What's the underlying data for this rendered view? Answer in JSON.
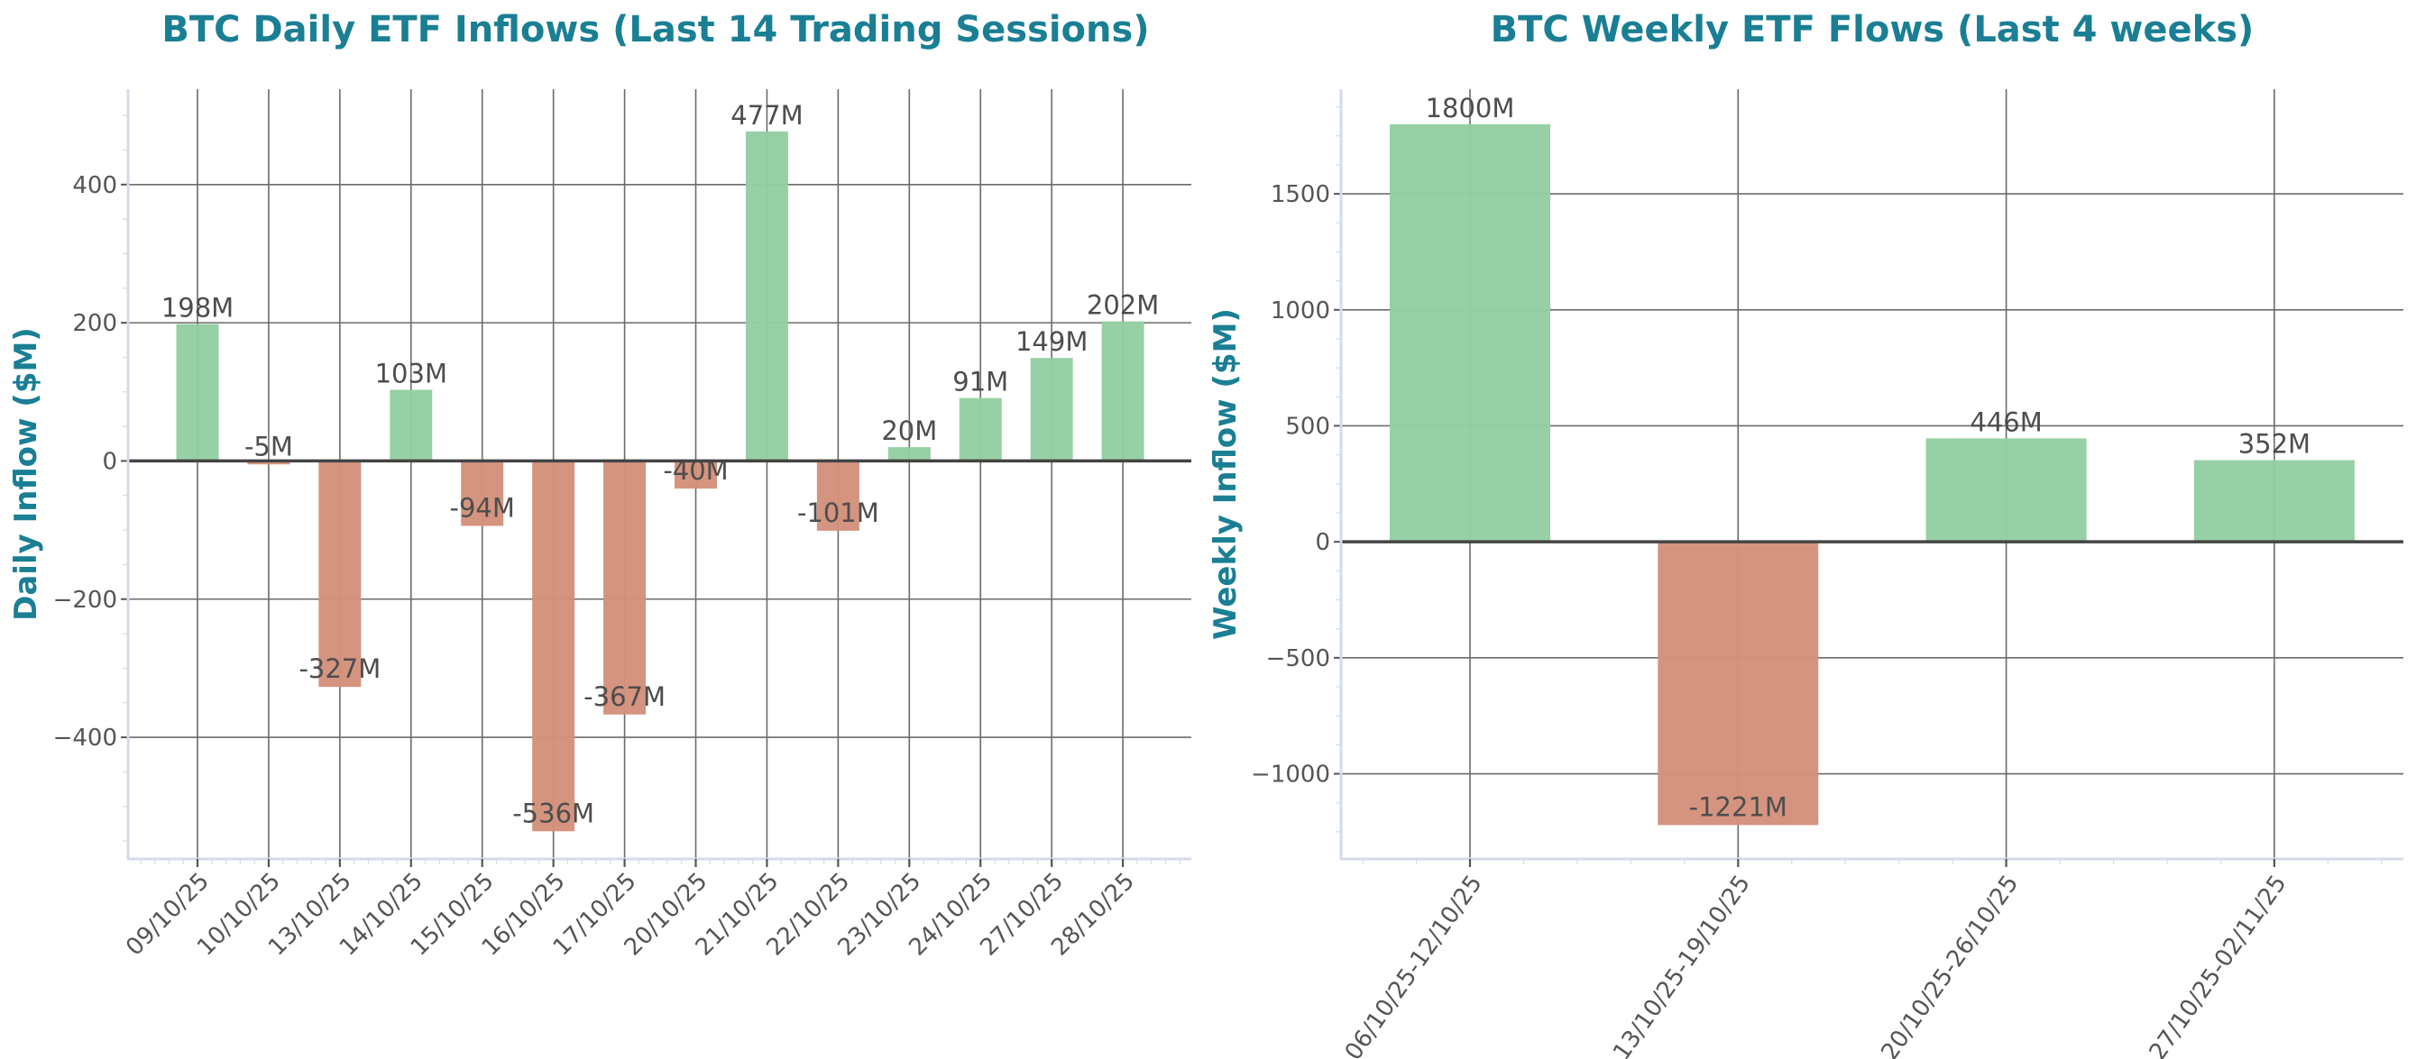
{
  "chart_data": [
    {
      "type": "bar",
      "title": "BTC Daily ETF Inflows (Last 14 Trading Sessions)",
      "xlabel": "",
      "ylabel": "Daily Inflow ($M)",
      "categories": [
        "09/10/25",
        "10/10/25",
        "13/10/25",
        "14/10/25",
        "15/10/25",
        "16/10/25",
        "17/10/25",
        "20/10/25",
        "21/10/25",
        "22/10/25",
        "23/10/25",
        "24/10/25",
        "27/10/25",
        "28/10/25"
      ],
      "values": [
        198,
        -5,
        -327,
        103,
        -94,
        -536,
        -367,
        -40,
        477,
        -101,
        20,
        91,
        149,
        202
      ],
      "value_labels": [
        "198M",
        "-5M",
        "-327M",
        "103M",
        "-94M",
        "-536M",
        "-367M",
        "-40M",
        "477M",
        "-101M",
        "20M",
        "91M",
        "149M",
        "202M"
      ],
      "yticks": [
        -400,
        -200,
        0,
        200,
        400
      ],
      "ytick_labels": [
        "−400",
        "−200",
        "0",
        "200",
        "400"
      ],
      "ylim": [
        -576,
        538
      ],
      "grid": true,
      "legend": null
    },
    {
      "type": "bar",
      "title": "BTC Weekly ETF Flows (Last 4 weeks)",
      "xlabel": "",
      "ylabel": "Weekly Inflow ($M)",
      "categories": [
        "06/10/25-12/10/25",
        "13/10/25-19/10/25",
        "20/10/25-26/10/25",
        "27/10/25-02/11/25"
      ],
      "values": [
        1800,
        -1221,
        446,
        352
      ],
      "value_labels": [
        "1800M",
        "-1221M",
        "446M",
        "352M"
      ],
      "yticks": [
        -1000,
        -500,
        0,
        500,
        1000,
        1500
      ],
      "ytick_labels": [
        "−1000",
        "−500",
        "0",
        "500",
        "1000",
        "1500"
      ],
      "ylim": [
        -1367,
        1951
      ],
      "grid": true,
      "legend": null
    }
  ],
  "colors": {
    "positive": "#94cea2",
    "negative": "#d4917b",
    "title": "#1a7f94",
    "text": "#4d4d4d"
  }
}
